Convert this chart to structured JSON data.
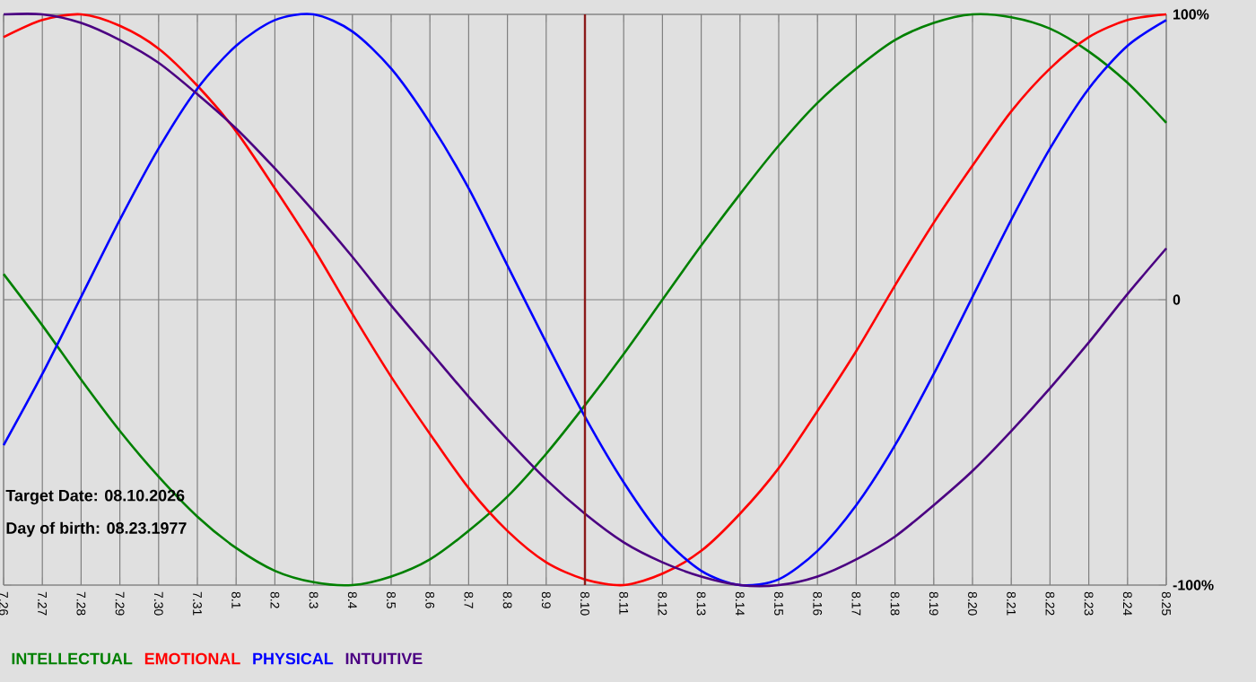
{
  "chart_data": {
    "type": "line",
    "categories": [
      "7.26",
      "7.27",
      "7.28",
      "7.29",
      "7.30",
      "7.31",
      "8.1",
      "8.2",
      "8.3",
      "8.4",
      "8.5",
      "8.6",
      "8.7",
      "8.8",
      "8.9",
      "8.10",
      "8.11",
      "8.12",
      "8.13",
      "8.14",
      "8.15",
      "8.16",
      "8.17",
      "8.18",
      "8.19",
      "8.20",
      "8.21",
      "8.22",
      "8.23",
      "8.24",
      "8.25"
    ],
    "series": [
      {
        "name": "INTELLECTUAL",
        "color": "#008000",
        "values": [
          9,
          -9,
          -28,
          -46,
          -62,
          -76,
          -87,
          -95,
          -99,
          -100,
          -97,
          -91,
          -81,
          -69,
          -54,
          -37,
          -19,
          0,
          19,
          37,
          54,
          69,
          81,
          91,
          97,
          100,
          99,
          95,
          87,
          76,
          62
        ]
      },
      {
        "name": "EMOTIONAL",
        "color": "#ff0000",
        "values": [
          92,
          98,
          100,
          96,
          88,
          75,
          59,
          39,
          18,
          -5,
          -27,
          -47,
          -66,
          -81,
          -92,
          -98,
          -100,
          -96,
          -88,
          -75,
          -59,
          -39,
          -18,
          5,
          27,
          47,
          66,
          81,
          92,
          98,
          100
        ]
      },
      {
        "name": "PHYSICAL",
        "color": "#0000ff",
        "values": [
          -51,
          -26,
          1,
          28,
          53,
          74,
          89,
          98,
          100,
          94,
          81,
          62,
          39,
          12,
          -15,
          -41,
          -64,
          -83,
          -95,
          -100,
          -98,
          -88,
          -72,
          -51,
          -26,
          1,
          28,
          53,
          74,
          89,
          98
        ]
      },
      {
        "name": "INTUITIVE",
        "color": "#4b0082",
        "values": [
          100,
          100,
          97,
          91,
          83,
          72,
          60,
          46,
          31,
          15,
          -2,
          -18,
          -34,
          -49,
          -63,
          -75,
          -85,
          -92,
          -97,
          -100,
          -100,
          -97,
          -91,
          -83,
          -72,
          -60,
          -46,
          -31,
          -15,
          2,
          18
        ]
      }
    ],
    "ylim": [
      -100,
      100
    ],
    "yticks": [
      {
        "value": 100,
        "label": "100%"
      },
      0,
      {
        "value": -100,
        "label": "-100%"
      }
    ],
    "grid": true,
    "legend": "bottom",
    "ref_lines": [
      {
        "axis": "x",
        "value": "8.10",
        "color": "#8b1a1a"
      }
    ],
    "annotations": [
      "Target Date: 08.10.2026",
      "Day of birth: 08.23.1977"
    ]
  }
}
